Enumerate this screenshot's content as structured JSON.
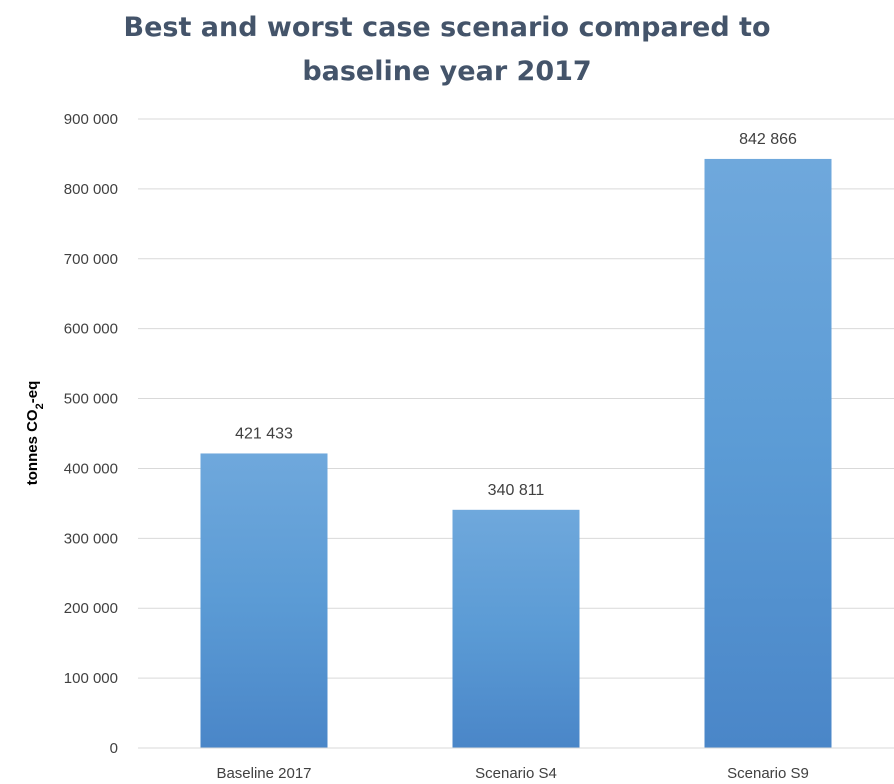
{
  "chart_data": {
    "type": "bar",
    "title": "Best and worst case scenario compared to baseline year 2017",
    "title_lines": [
      "Best and worst case scenario compared to",
      "baseline year 2017"
    ],
    "xlabel": "",
    "ylabel": "tonnes CO2-eq",
    "ylabel_parts": {
      "prefix": "tonnes CO",
      "subscript": "2",
      "suffix": "-eq"
    },
    "categories": [
      "Baseline 2017",
      "Scenario S4",
      "Scenario S9"
    ],
    "values": [
      421433,
      340811,
      842866
    ],
    "data_labels": [
      "421 433",
      "340 811",
      "842 866"
    ],
    "ylim": [
      0,
      900000
    ],
    "yticks": [
      0,
      100000,
      200000,
      300000,
      400000,
      500000,
      600000,
      700000,
      800000,
      900000
    ],
    "ytick_labels": [
      "0",
      "100 000",
      "200 000",
      "300 000",
      "400 000",
      "500 000",
      "600 000",
      "700 000",
      "800 000",
      "900 000"
    ],
    "grid": true,
    "legend": "none",
    "colors": {
      "bar_top": "#6FA8DC",
      "bar_bottom": "#4A86C8",
      "bar_mid": "#5B9BD5",
      "title": "#44546A",
      "gridline": "#D9D9D9",
      "text": "#404040"
    }
  }
}
